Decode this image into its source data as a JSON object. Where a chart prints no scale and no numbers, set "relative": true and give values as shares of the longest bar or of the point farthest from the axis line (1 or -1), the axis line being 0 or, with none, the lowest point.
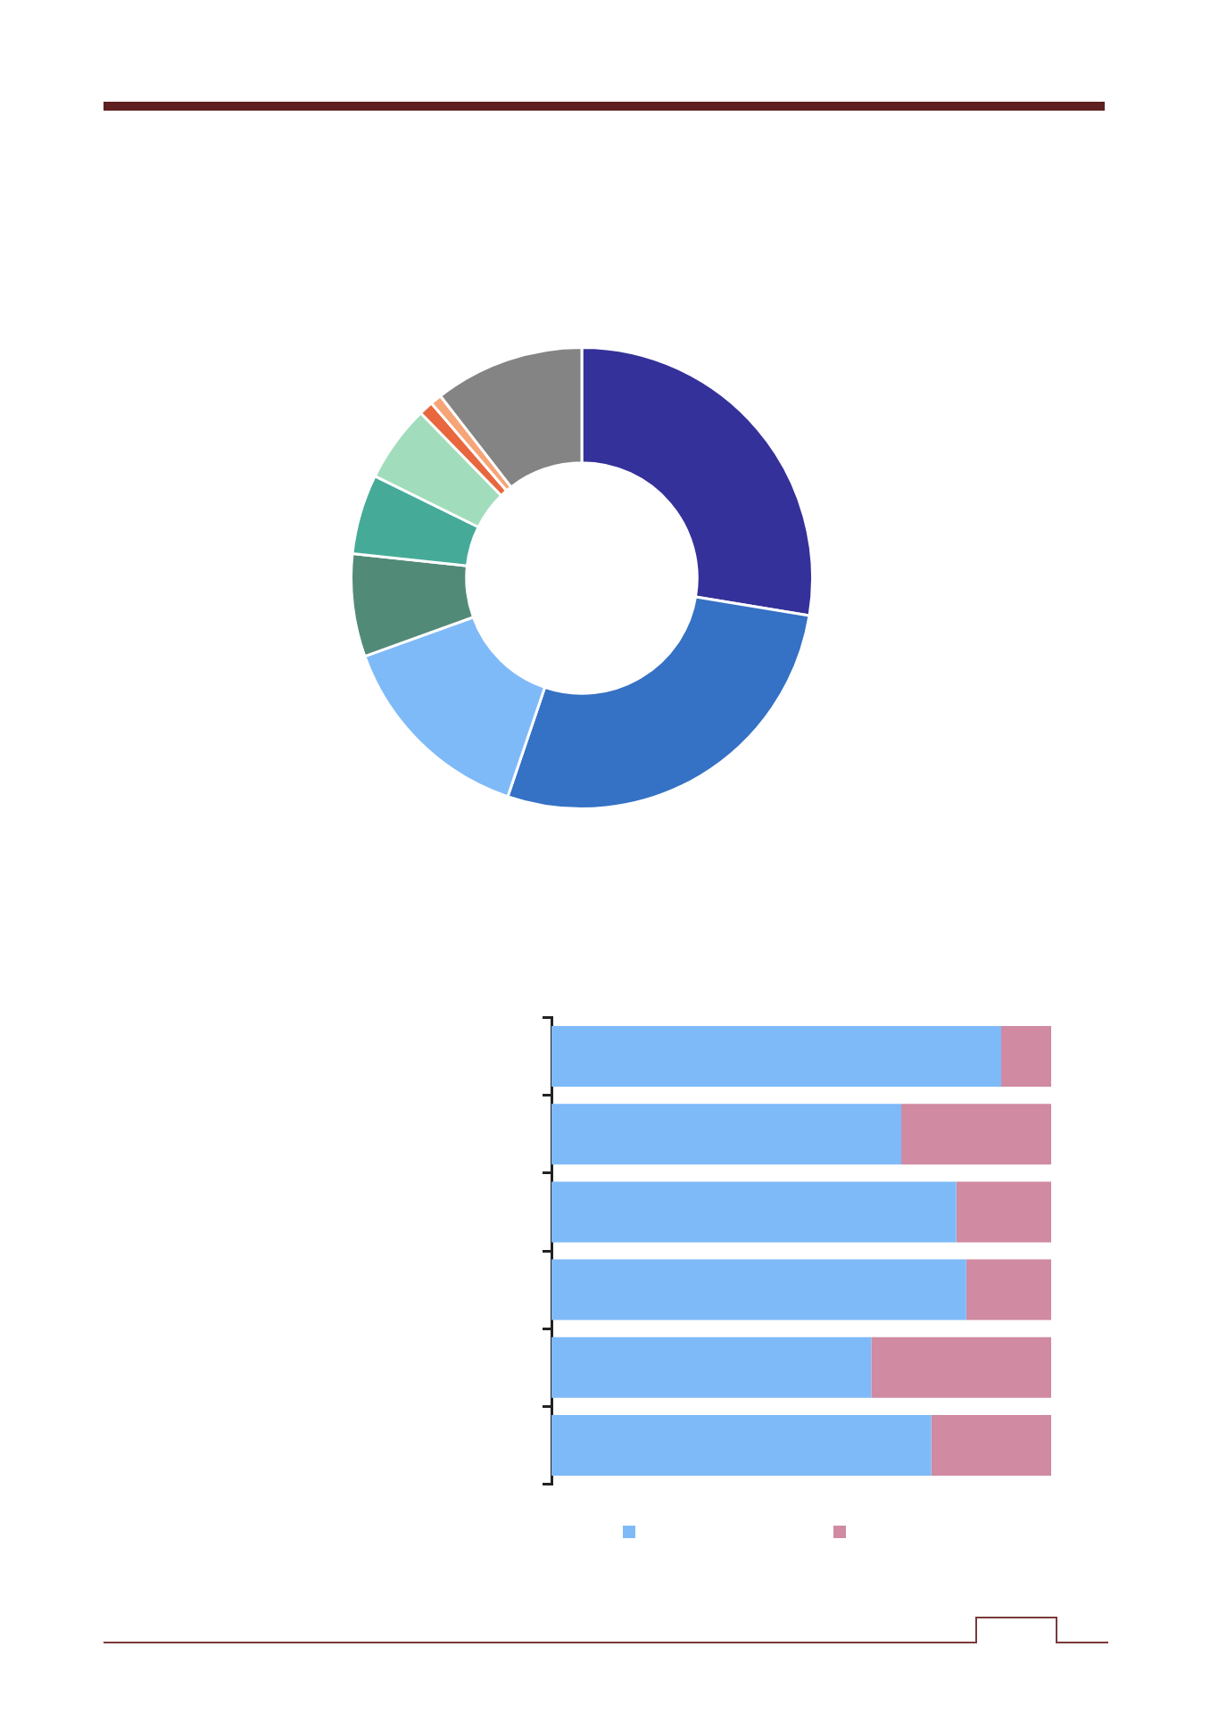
{
  "chart_data": [
    {
      "type": "donut",
      "categories": [
        null,
        null,
        null,
        null,
        null,
        null,
        null,
        null,
        null
      ],
      "values": [
        27.6,
        27.6,
        14.3,
        7.2,
        5.6,
        5.4,
        1.0,
        0.8,
        10.5
      ],
      "colors": [
        "#35319a",
        "#3571c4",
        "#7fbaf8",
        "#528a78",
        "#45ab98",
        "#a1ddbc",
        "#e8673e",
        "#f6a578",
        "#848484"
      ],
      "legend": false
    },
    {
      "type": "bar",
      "orientation": "horizontal",
      "stacked": true,
      "relative": true,
      "categories": [
        null,
        null,
        null,
        null,
        null,
        null
      ],
      "series": [
        {
          "color": "#7fbaf8",
          "values": [
            0.9,
            0.7,
            0.81,
            0.83,
            0.64,
            0.76
          ]
        },
        {
          "color": "#d08aa2",
          "values": [
            0.1,
            0.3,
            0.19,
            0.17,
            0.36,
            0.24
          ]
        }
      ]
    }
  ]
}
